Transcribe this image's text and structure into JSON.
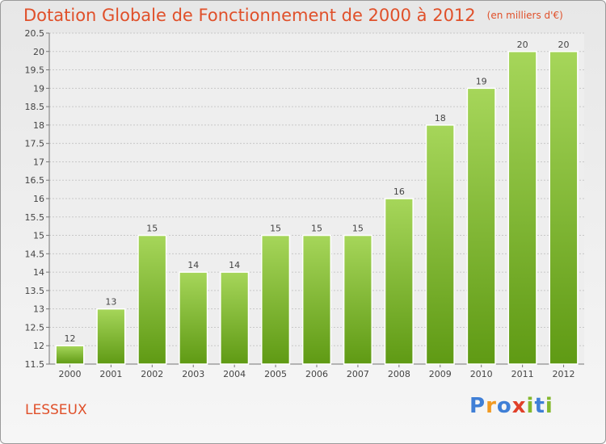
{
  "title": "Dotation Globale de Fonctionnement de 2000 à 2012",
  "subtitle": "(en milliers d'€)",
  "commune": "LESSEUX",
  "logo": {
    "letters": [
      "P",
      "r",
      "o",
      "x",
      "i",
      "t",
      "i"
    ],
    "colors": [
      "#3f7fd6",
      "#f19a22",
      "#3f7fd6",
      "#e0402a",
      "#84b82d",
      "#3f7fd6",
      "#84b82d"
    ]
  },
  "colors": {
    "accent": "#e0502a",
    "bar_light": "#a6d65a",
    "bar_dark": "#5f9a14"
  },
  "chart_data": {
    "type": "bar",
    "categories": [
      "2000",
      "2001",
      "2002",
      "2003",
      "2004",
      "2005",
      "2006",
      "2007",
      "2008",
      "2009",
      "2010",
      "2011",
      "2012"
    ],
    "values": [
      12,
      13,
      15,
      14,
      14,
      15,
      15,
      15,
      16,
      18,
      19,
      20,
      20
    ],
    "ylim": [
      11.5,
      20.5
    ],
    "yticks": [
      "11.5",
      "12",
      "12.5",
      "13",
      "13.5",
      "14",
      "14.5",
      "15",
      "15.5",
      "16",
      "16.5",
      "17",
      "17.5",
      "18",
      "18.5",
      "19",
      "19.5",
      "20",
      "20.5"
    ],
    "grid": true
  }
}
